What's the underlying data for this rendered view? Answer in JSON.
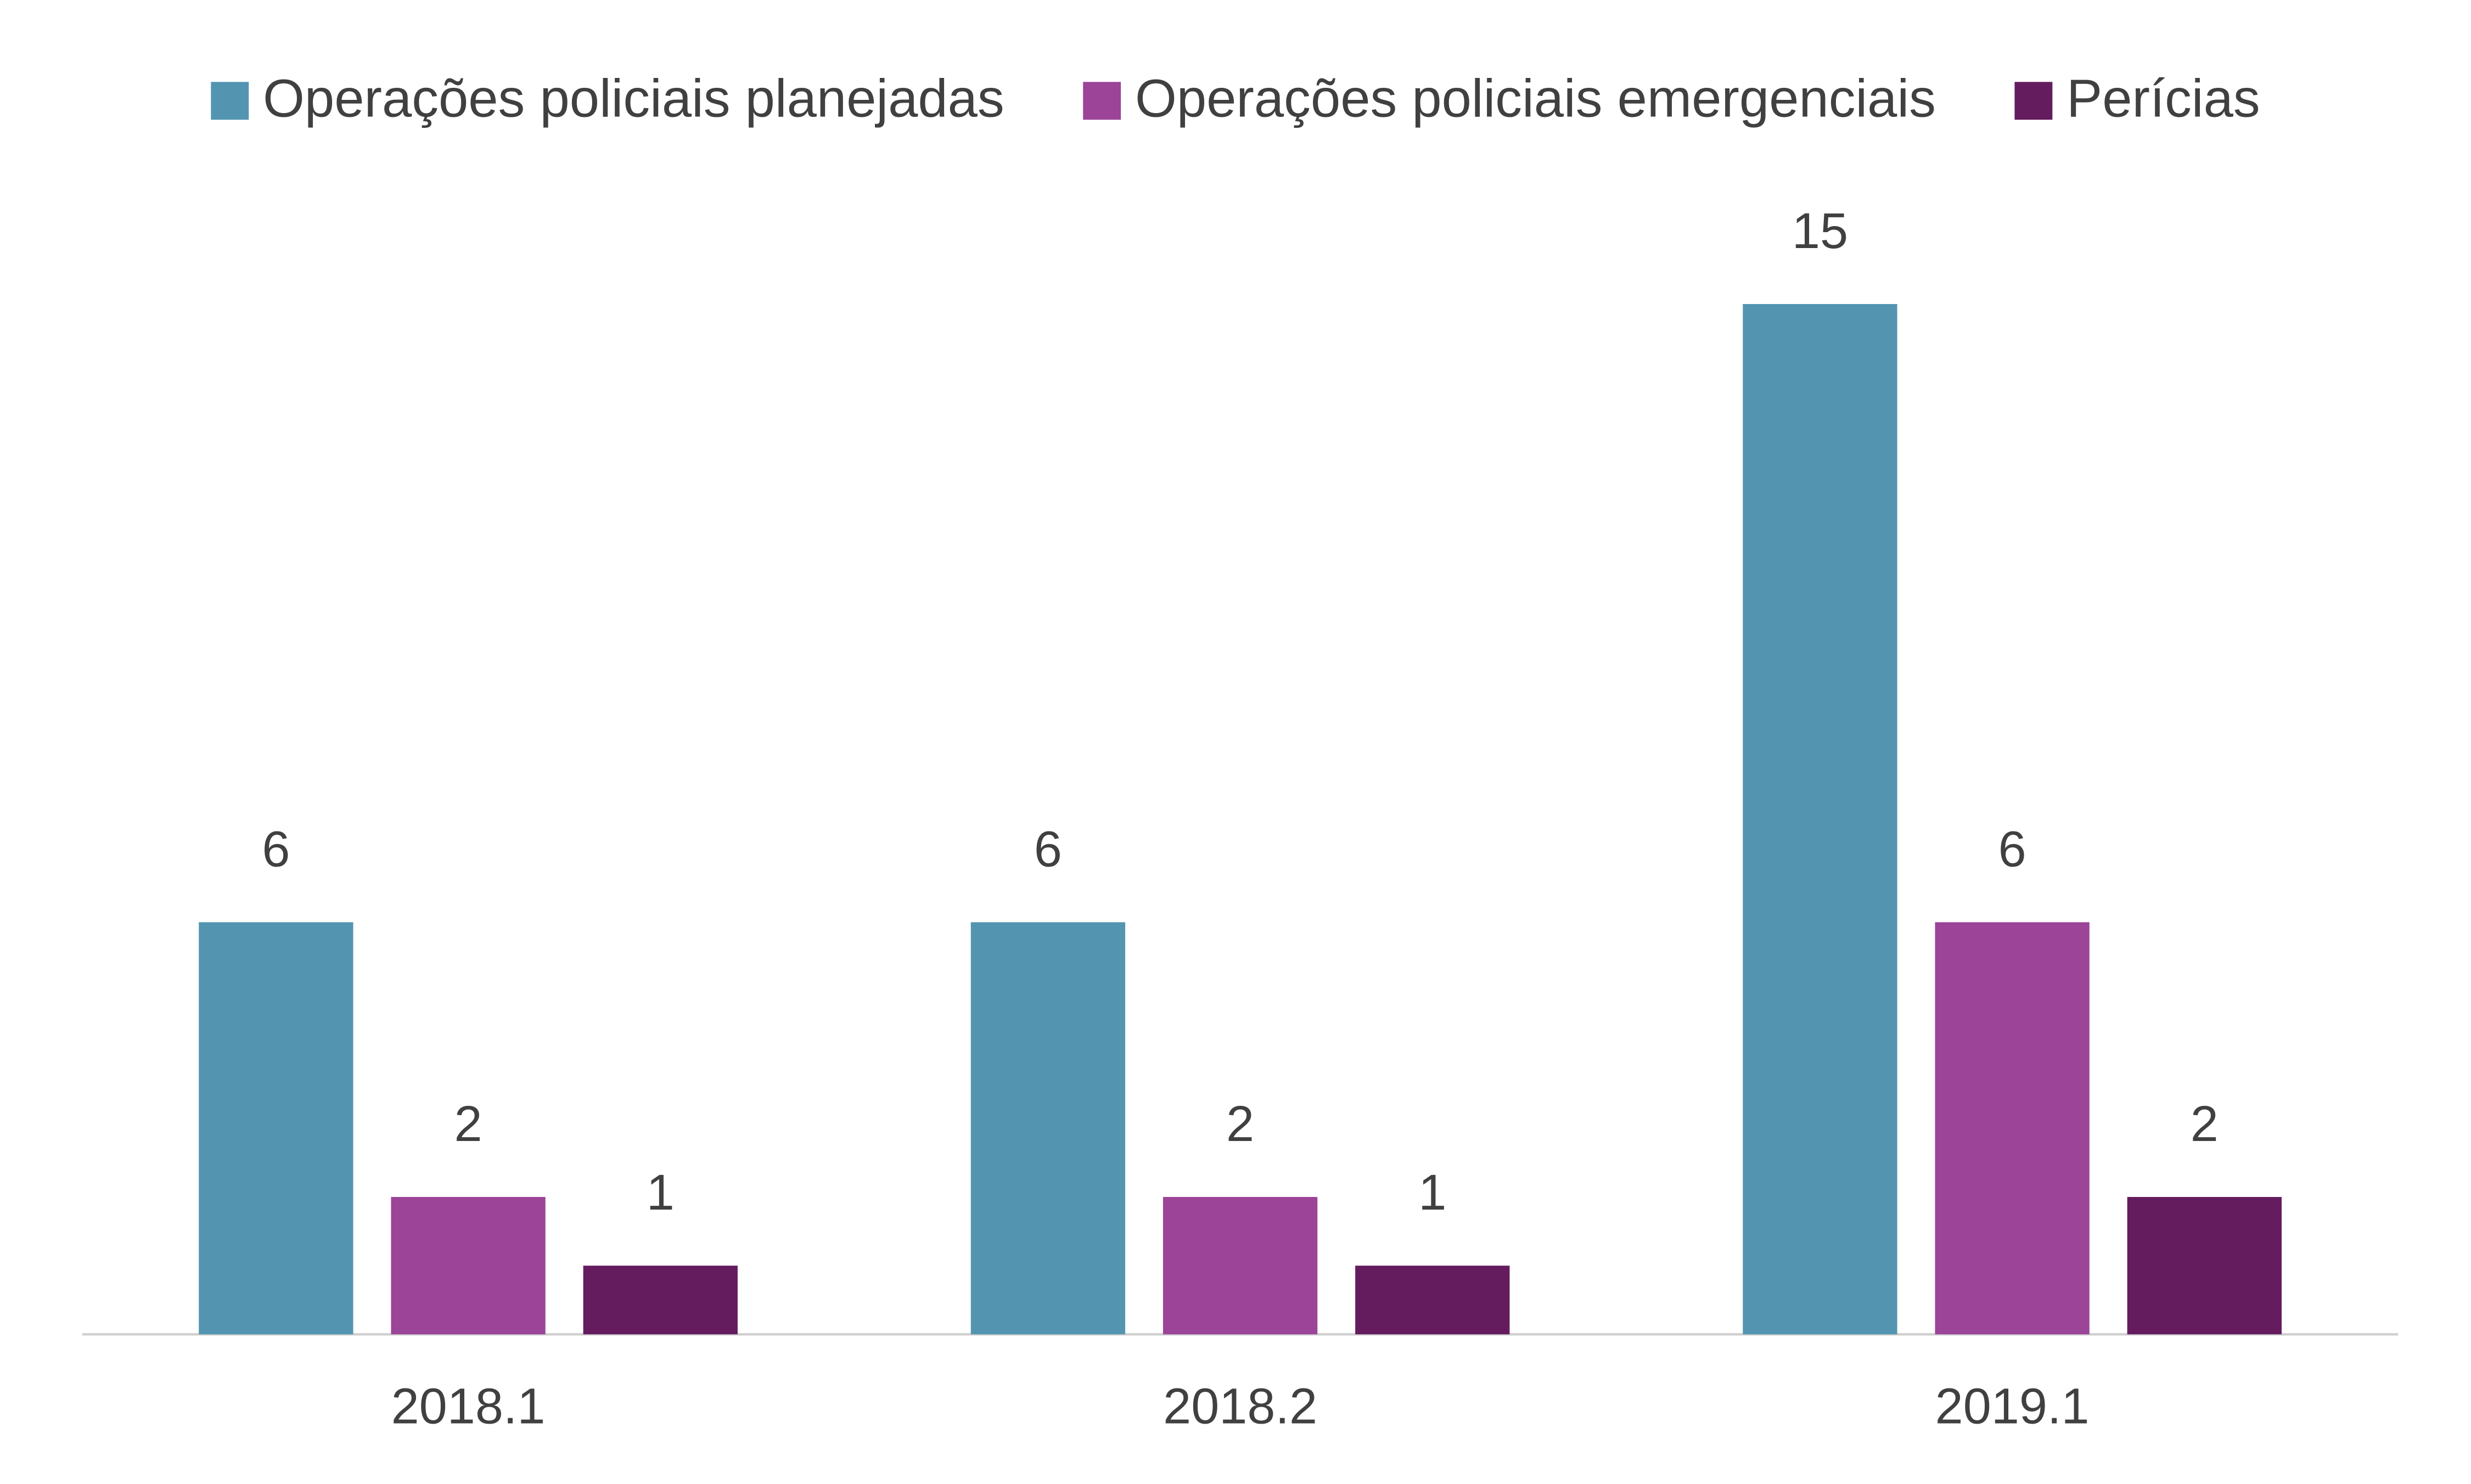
{
  "chart_data": {
    "type": "bar",
    "categories": [
      "2018.1",
      "2018.2",
      "2019.1"
    ],
    "series": [
      {
        "name": "Operações policiais planejadas",
        "color": "#5395b1",
        "values": [
          6,
          6,
          15
        ]
      },
      {
        "name": "Operações policiais emergenciais",
        "color": "#9b4498",
        "values": [
          2,
          2,
          6
        ]
      },
      {
        "name": "Perícias",
        "color": "#641c5f",
        "values": [
          1,
          1,
          2
        ]
      }
    ],
    "legend": "top"
  }
}
